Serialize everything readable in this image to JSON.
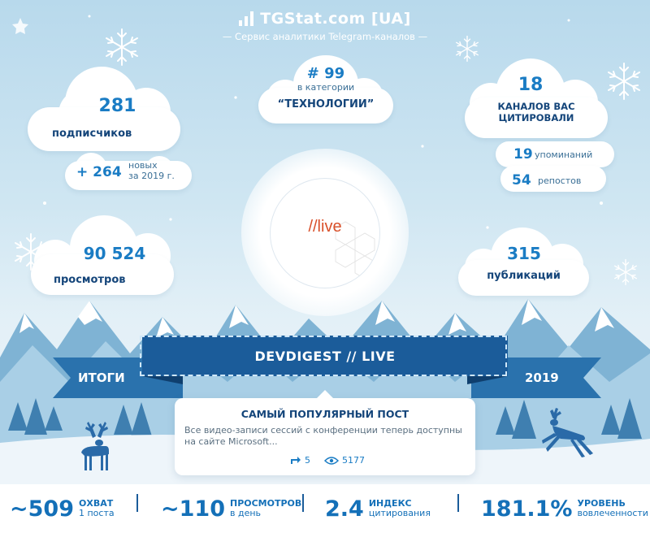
{
  "header": {
    "title": "TGStat.com [UA]",
    "subtitle": "— Сервис аналитики Telegram-каналов —"
  },
  "subscribers": {
    "value": "281",
    "label": "подписчиков",
    "new_value": "+ 264",
    "new_label_1": "новых",
    "new_label_2": "за 2019 г."
  },
  "category": {
    "rank": "# 99",
    "prefix": "в категории",
    "name": "“ТЕХНОЛОГИИ”"
  },
  "citations": {
    "value": "18",
    "label_1": "КАНАЛОВ ВАС",
    "label_2": "ЦИТИРОВАЛИ",
    "mentions_value": "19",
    "mentions_label": "упоминаний",
    "reposts_value": "54",
    "reposts_label": "репостов"
  },
  "views": {
    "value": "90 524",
    "label": "просмотров"
  },
  "publications": {
    "value": "315",
    "label": "публикаций"
  },
  "logo": {
    "text": "//live"
  },
  "banner": {
    "title": "DEVDIGEST // LIVE",
    "left": "ИТОГИ",
    "right": "2019"
  },
  "post": {
    "heading": "САМЫЙ ПОПУЛЯРНЫЙ ПОСТ",
    "text": "Все видео-записи сессий с конференции теперь доступны на сайте Microsoft...",
    "reposts": "5",
    "views": "5177"
  },
  "metrics": [
    {
      "value": "~509",
      "title": "ОХВАТ",
      "sub": "1 поста"
    },
    {
      "value": "~110",
      "title": "ПРОСМОТРОВ",
      "sub": "в день"
    },
    {
      "value": "2.4",
      "title": "ИНДЕКС",
      "sub": "цитирования"
    },
    {
      "value": "181.1%",
      "title": "УРОВЕНЬ",
      "sub": "вовлеченности"
    }
  ],
  "colors": {
    "primary": "#1a7cc4",
    "dark": "#14457a",
    "banner": "#1b5c9a",
    "logo": "#d9502a"
  }
}
